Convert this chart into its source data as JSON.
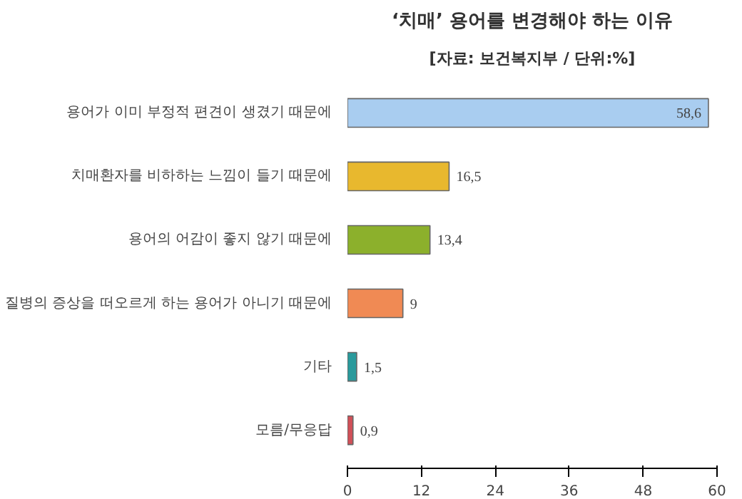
{
  "chart_data": {
    "type": "bar",
    "orientation": "horizontal",
    "title": "‘치매’ 용어를 변경해야 하는 이유",
    "subtitle": "[자료: 보건복지부 / 단위:%]",
    "categories": [
      "용어가 이미 부정적 편견이 생겼기 때문에",
      "치매환자를 비하하는 느낌이 들기 때문에",
      "용어의 어감이 좋지 않기 때문에",
      "질병의 증상을 떠오르게 하는 용어가 아니기 때문에",
      "기타",
      "모름/무응답"
    ],
    "values": [
      58.6,
      16.5,
      13.4,
      9,
      1.5,
      0.9
    ],
    "colors": [
      "#a9cdf0",
      "#e8b82e",
      "#8cb02c",
      "#f08a54",
      "#2a9a9c",
      "#d05058"
    ],
    "value_labels": [
      "58,6",
      "16,5",
      "13,4",
      "9",
      "1,5",
      "0,9"
    ],
    "xlim": [
      0,
      60
    ],
    "xticks": [
      0,
      12,
      24,
      36,
      48,
      60
    ],
    "grid": false
  }
}
